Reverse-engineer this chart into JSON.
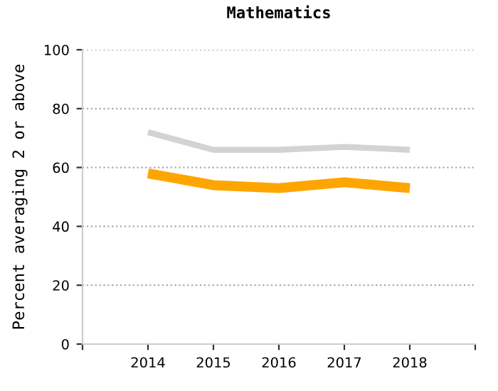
{
  "chart_data": {
    "type": "line",
    "title": "Mathematics",
    "ylabel": "Percent averaging 2 or above",
    "x": [
      2014,
      2015,
      2016,
      2017,
      2018
    ],
    "series": [
      {
        "color": "#d3d3d3",
        "values": [
          72,
          66,
          66,
          67,
          66
        ]
      },
      {
        "color": "#ffa500",
        "values": [
          58,
          54,
          53,
          55,
          53
        ]
      }
    ],
    "xlim": [
      2013,
      2019
    ],
    "xticks": [
      {
        "value": 2013,
        "label": null
      },
      2014,
      2015,
      2016,
      2017,
      2018,
      {
        "value": 2019,
        "label": null
      }
    ],
    "ylim": [
      0,
      100
    ],
    "yticks": [
      0,
      20,
      40,
      60,
      80,
      100
    ],
    "grid": "y",
    "legend": false,
    "marker": "none",
    "line_style": "solid"
  }
}
